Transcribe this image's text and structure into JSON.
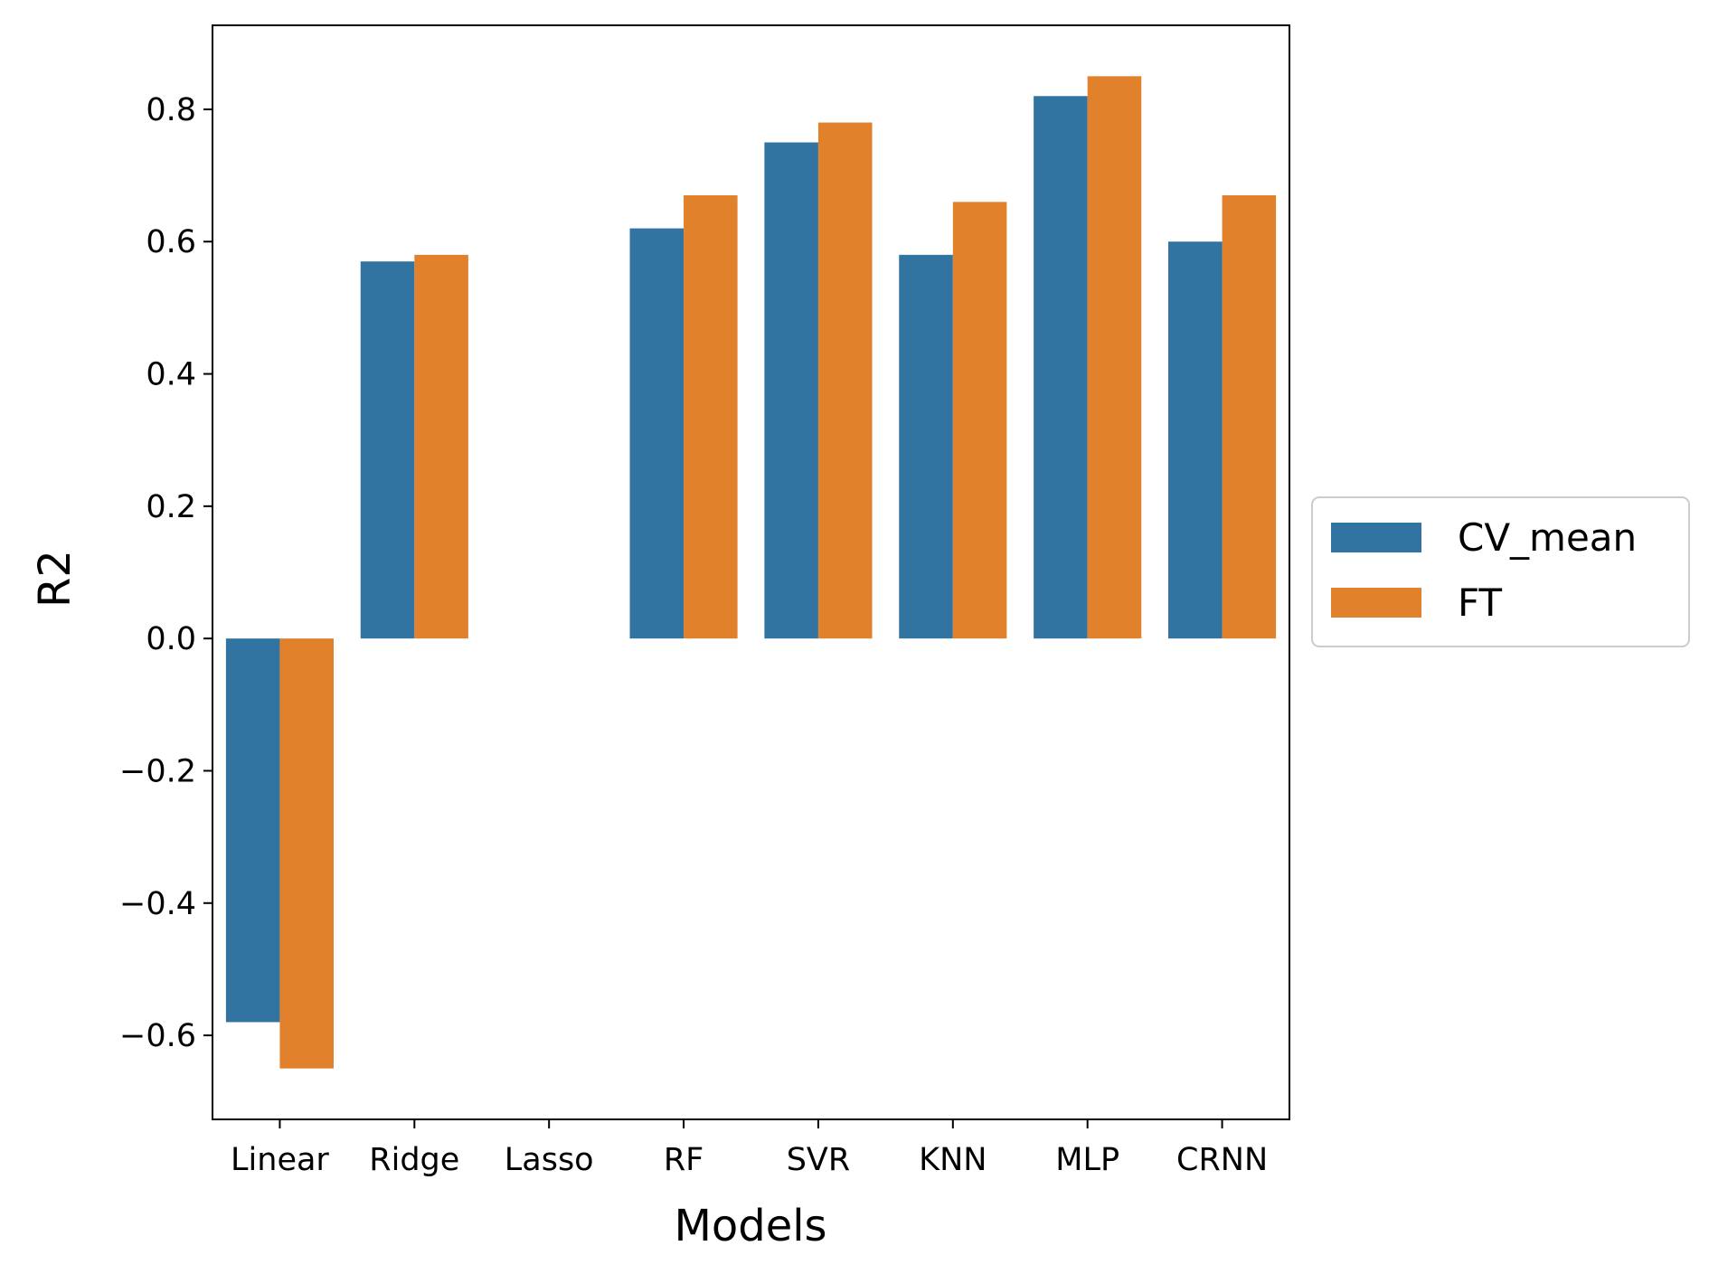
{
  "chart_data": {
    "type": "bar",
    "title": "",
    "xlabel": "Models",
    "ylabel": "R2",
    "categories": [
      "Linear",
      "Ridge",
      "Lasso",
      "RF",
      "SVR",
      "KNN",
      "MLP",
      "CRNN"
    ],
    "series": [
      {
        "name": "CV_mean",
        "color": "#3274a1",
        "values": [
          -0.58,
          0.57,
          0.0,
          0.62,
          0.75,
          0.58,
          0.82,
          0.6
        ]
      },
      {
        "name": "FT",
        "color": "#e1812c",
        "values": [
          -0.65,
          0.58,
          0.0,
          0.67,
          0.78,
          0.66,
          0.85,
          0.67
        ]
      }
    ],
    "yticks": [
      -0.6,
      -0.4,
      -0.2,
      0.0,
      0.2,
      0.4,
      0.6,
      0.8
    ],
    "ytick_labels": [
      "−0.6",
      "−0.4",
      "−0.2",
      "0.0",
      "0.2",
      "0.4",
      "0.6",
      "0.8"
    ],
    "ylim": [
      -0.727,
      0.927
    ],
    "grid": false,
    "legend_position": "center-right outside"
  }
}
